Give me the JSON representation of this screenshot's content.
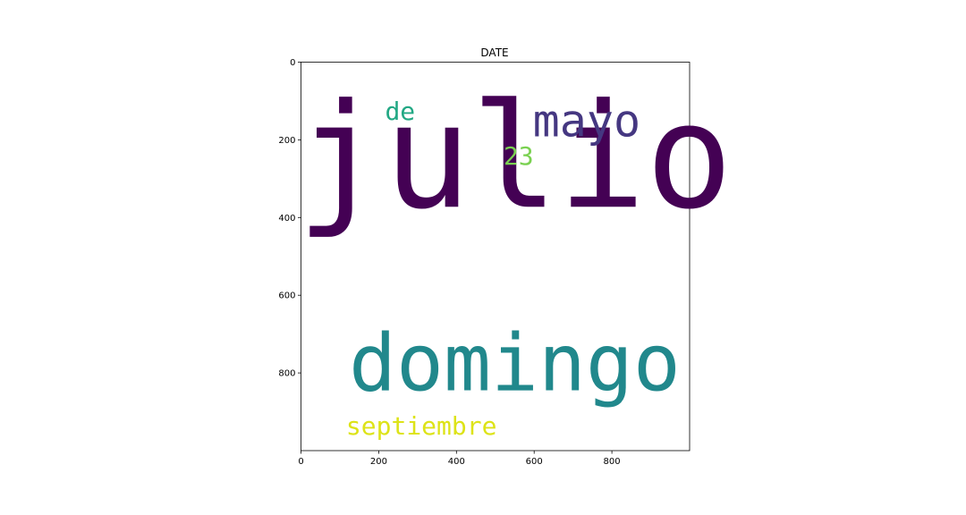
{
  "chart_data": {
    "type": "wordcloud",
    "title": "DATE",
    "xlim": [
      0,
      1000
    ],
    "ylim": [
      1000,
      0
    ],
    "xticks": [
      0,
      200,
      400,
      600,
      800
    ],
    "yticks": [
      0,
      200,
      400,
      600,
      800
    ],
    "words": [
      {
        "text": "julio",
        "x": 550,
        "y": 270,
        "color": "#440154"
      },
      {
        "text": "domingo",
        "x": 550,
        "y": 790,
        "color": "#21888c"
      },
      {
        "text": "mayo",
        "x": 735,
        "y": 160,
        "color": "#453781"
      },
      {
        "text": "de",
        "x": 255,
        "y": 130,
        "color": "#22a884"
      },
      {
        "text": "23",
        "x": 560,
        "y": 245,
        "color": "#7ad151"
      },
      {
        "text": "septiembre",
        "x": 310,
        "y": 940,
        "color": "#dde318"
      }
    ]
  }
}
